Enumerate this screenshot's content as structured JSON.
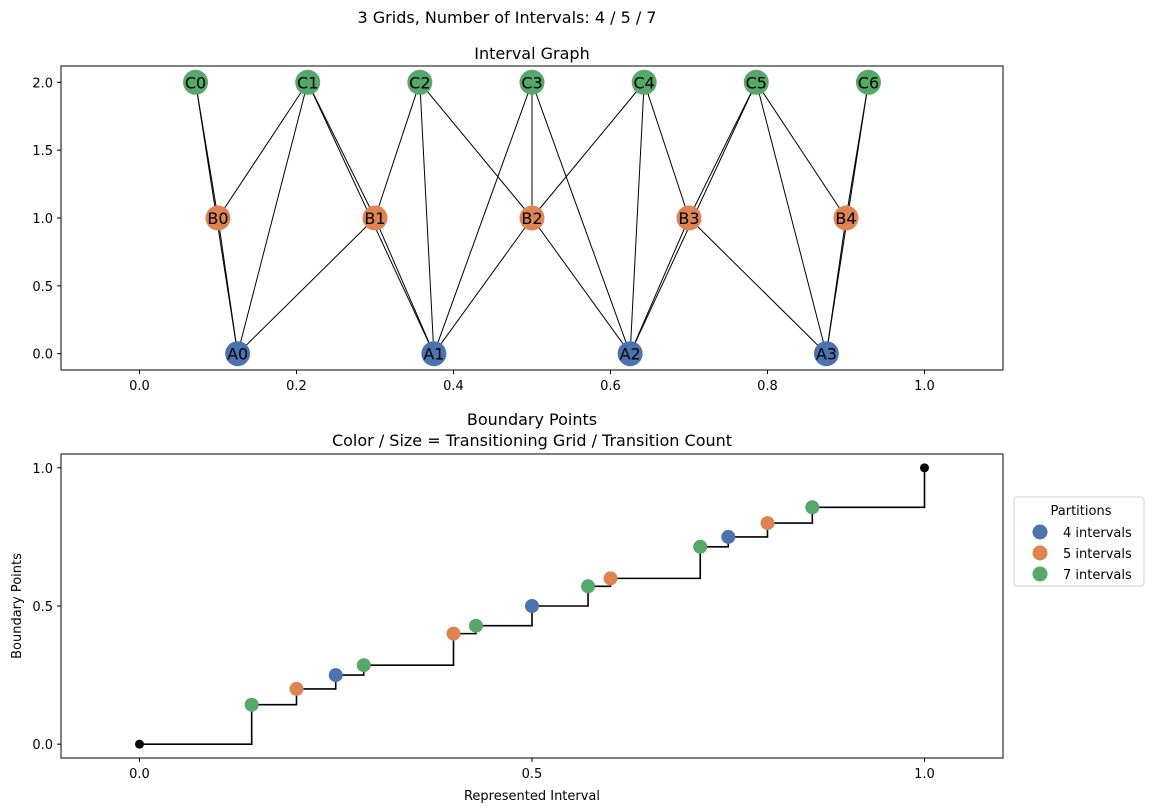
{
  "figure": {
    "suptitle": "3 Grids, Number of Intervals: 4 / 5 / 7"
  },
  "chart_data": [
    {
      "type": "network",
      "title": "Interval Graph",
      "xlim": [
        -0.1,
        1.1
      ],
      "ylim": [
        -0.12,
        2.12
      ],
      "x_ticks": [
        0.0,
        0.2,
        0.4,
        0.6,
        0.8,
        1.0
      ],
      "x_tick_labels": [
        "0.0",
        "0.2",
        "0.4",
        "0.6",
        "0.8",
        "1.0"
      ],
      "y_ticks": [
        0.0,
        0.5,
        1.0,
        1.5,
        2.0
      ],
      "y_tick_labels": [
        "0.0",
        "0.5",
        "1.0",
        "1.5",
        "2.0"
      ],
      "grid": false,
      "node_groups": [
        {
          "color": "#4c72b0",
          "nodes": [
            {
              "label": "A0",
              "x": 0.125,
              "y": 0
            },
            {
              "label": "A1",
              "x": 0.375,
              "y": 0
            },
            {
              "label": "A2",
              "x": 0.625,
              "y": 0
            },
            {
              "label": "A3",
              "x": 0.875,
              "y": 0
            }
          ]
        },
        {
          "color": "#dd8452",
          "nodes": [
            {
              "label": "B0",
              "x": 0.1,
              "y": 1
            },
            {
              "label": "B1",
              "x": 0.3,
              "y": 1
            },
            {
              "label": "B2",
              "x": 0.5,
              "y": 1
            },
            {
              "label": "B3",
              "x": 0.7,
              "y": 1
            },
            {
              "label": "B4",
              "x": 0.9,
              "y": 1
            }
          ]
        },
        {
          "color": "#55a868",
          "nodes": [
            {
              "label": "C0",
              "x": 0.0714,
              "y": 2
            },
            {
              "label": "C1",
              "x": 0.2143,
              "y": 2
            },
            {
              "label": "C2",
              "x": 0.3571,
              "y": 2
            },
            {
              "label": "C3",
              "x": 0.5,
              "y": 2
            },
            {
              "label": "C4",
              "x": 0.6429,
              "y": 2
            },
            {
              "label": "C5",
              "x": 0.7857,
              "y": 2
            },
            {
              "label": "C6",
              "x": 0.9286,
              "y": 2
            }
          ]
        }
      ],
      "edges": [
        [
          "C0",
          "B0"
        ],
        [
          "C0",
          "A0"
        ],
        [
          "C1",
          "B0"
        ],
        [
          "C1",
          "A0"
        ],
        [
          "C1",
          "B1"
        ],
        [
          "C1",
          "A1"
        ],
        [
          "C2",
          "B1"
        ],
        [
          "C2",
          "A1"
        ],
        [
          "C2",
          "B2"
        ],
        [
          "C3",
          "A1"
        ],
        [
          "C3",
          "B2"
        ],
        [
          "C3",
          "A2"
        ],
        [
          "C4",
          "B2"
        ],
        [
          "C4",
          "A2"
        ],
        [
          "C4",
          "B3"
        ],
        [
          "C5",
          "B3"
        ],
        [
          "C5",
          "A2"
        ],
        [
          "C5",
          "B4"
        ],
        [
          "C5",
          "A3"
        ],
        [
          "C6",
          "B4"
        ],
        [
          "C6",
          "A3"
        ],
        [
          "B0",
          "A0"
        ],
        [
          "B1",
          "A0"
        ],
        [
          "B1",
          "A1"
        ],
        [
          "B2",
          "A1"
        ],
        [
          "B2",
          "A2"
        ],
        [
          "B3",
          "A2"
        ],
        [
          "B3",
          "A3"
        ],
        [
          "B4",
          "A3"
        ]
      ]
    },
    {
      "type": "step",
      "title": "Boundary Points",
      "subtitle": "Color / Size = Transitioning Grid / Transition Count",
      "xlabel": "Represented Interval",
      "ylabel": "Boundary Points",
      "xlim": [
        -0.1,
        1.1
      ],
      "ylim": [
        -0.05,
        1.05
      ],
      "x_ticks": [
        0.0,
        0.5,
        1.0
      ],
      "x_tick_labels": [
        "0.0",
        "0.5",
        "1.0"
      ],
      "y_ticks": [
        0.0,
        0.5,
        1.0
      ],
      "y_tick_labels": [
        "0.0",
        "0.5",
        "1.0"
      ],
      "grid": false,
      "step_x": [
        0,
        0.1429,
        0.2,
        0.25,
        0.2857,
        0.4,
        0.4286,
        0.5,
        0.5714,
        0.6,
        0.7143,
        0.75,
        0.8,
        0.8571,
        1.0
      ],
      "step_y": [
        0,
        0.1429,
        0.2,
        0.25,
        0.2857,
        0.4,
        0.4286,
        0.5,
        0.5714,
        0.6,
        0.7143,
        0.75,
        0.8,
        0.8571,
        1.0
      ],
      "endpoints": [
        {
          "x": 0,
          "y": 0
        },
        {
          "x": 1.0,
          "y": 1.0
        }
      ],
      "legend": {
        "title": "Partitions",
        "position": "right"
      },
      "series": [
        {
          "name": "4 intervals",
          "color": "#4c72b0",
          "points": [
            [
              0.25,
              0.25
            ],
            [
              0.5,
              0.5
            ],
            [
              0.75,
              0.75
            ]
          ]
        },
        {
          "name": "5 intervals",
          "color": "#dd8452",
          "points": [
            [
              0.2,
              0.2
            ],
            [
              0.4,
              0.4
            ],
            [
              0.6,
              0.6
            ],
            [
              0.8,
              0.8
            ]
          ]
        },
        {
          "name": "7 intervals",
          "color": "#55a868",
          "points": [
            [
              0.1429,
              0.1429
            ],
            [
              0.2857,
              0.2857
            ],
            [
              0.4286,
              0.4286
            ],
            [
              0.5714,
              0.5714
            ],
            [
              0.7143,
              0.7143
            ],
            [
              0.8571,
              0.8571
            ]
          ]
        }
      ]
    }
  ]
}
